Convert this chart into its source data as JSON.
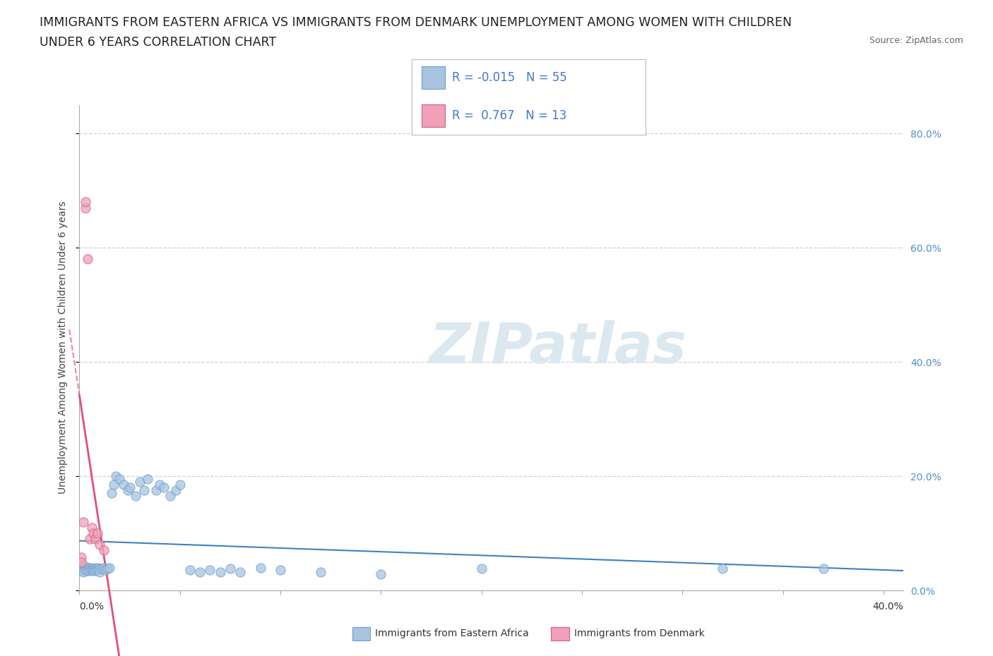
{
  "title_line1": "IMMIGRANTS FROM EASTERN AFRICA VS IMMIGRANTS FROM DENMARK UNEMPLOYMENT AMONG WOMEN WITH CHILDREN",
  "title_line2": "UNDER 6 YEARS CORRELATION CHART",
  "source": "Source: ZipAtlas.com",
  "ylabel": "Unemployment Among Women with Children Under 6 years",
  "legend_label1": "Immigrants from Eastern Africa",
  "legend_label2": "Immigrants from Denmark",
  "watermark_text": "ZIPatlas",
  "background_color": "#ffffff",
  "blue_fill": "#a8c4e0",
  "blue_edge": "#6aa0cc",
  "pink_fill": "#f0a0b8",
  "pink_edge": "#d06080",
  "trendline_blue": "#4080c0",
  "trendline_pink": "#e0507a",
  "watermark_color": "#dce8f0",
  "grid_color": "#d0d0d0",
  "right_tick_color": "#5090cc",
  "title_color": "#222222",
  "source_color": "#666666",
  "xlim": [
    0.0,
    0.41
  ],
  "ylim": [
    0.0,
    0.85
  ],
  "scatter_blue_x": [
    0.001,
    0.001,
    0.002,
    0.002,
    0.003,
    0.003,
    0.004,
    0.004,
    0.005,
    0.005,
    0.006,
    0.006,
    0.007,
    0.007,
    0.008,
    0.008,
    0.009,
    0.009,
    0.01,
    0.01,
    0.011,
    0.012,
    0.013,
    0.014,
    0.015,
    0.016,
    0.017,
    0.018,
    0.02,
    0.022,
    0.024,
    0.025,
    0.028,
    0.03,
    0.032,
    0.034,
    0.038,
    0.04,
    0.042,
    0.045,
    0.048,
    0.05,
    0.055,
    0.06,
    0.065,
    0.07,
    0.075,
    0.08,
    0.09,
    0.1,
    0.12,
    0.15,
    0.2,
    0.32,
    0.37
  ],
  "scatter_blue_y": [
    0.04,
    0.035,
    0.038,
    0.032,
    0.042,
    0.036,
    0.038,
    0.034,
    0.04,
    0.035,
    0.038,
    0.036,
    0.04,
    0.035,
    0.038,
    0.034,
    0.04,
    0.036,
    0.038,
    0.032,
    0.038,
    0.04,
    0.036,
    0.038,
    0.04,
    0.17,
    0.185,
    0.2,
    0.195,
    0.185,
    0.175,
    0.18,
    0.165,
    0.19,
    0.175,
    0.195,
    0.175,
    0.185,
    0.18,
    0.165,
    0.175,
    0.185,
    0.036,
    0.032,
    0.036,
    0.032,
    0.038,
    0.032,
    0.04,
    0.036,
    0.032,
    0.028,
    0.038,
    0.038,
    0.038
  ],
  "scatter_pink_x": [
    0.001,
    0.001,
    0.002,
    0.003,
    0.003,
    0.004,
    0.005,
    0.006,
    0.007,
    0.008,
    0.009,
    0.01,
    0.012
  ],
  "scatter_pink_y": [
    0.058,
    0.05,
    0.12,
    0.67,
    0.68,
    0.58,
    0.09,
    0.11,
    0.1,
    0.09,
    0.1,
    0.08,
    0.07
  ],
  "title_fontsize": 12.5,
  "label_fontsize": 10,
  "tick_fontsize": 10,
  "legend_fontsize": 12
}
